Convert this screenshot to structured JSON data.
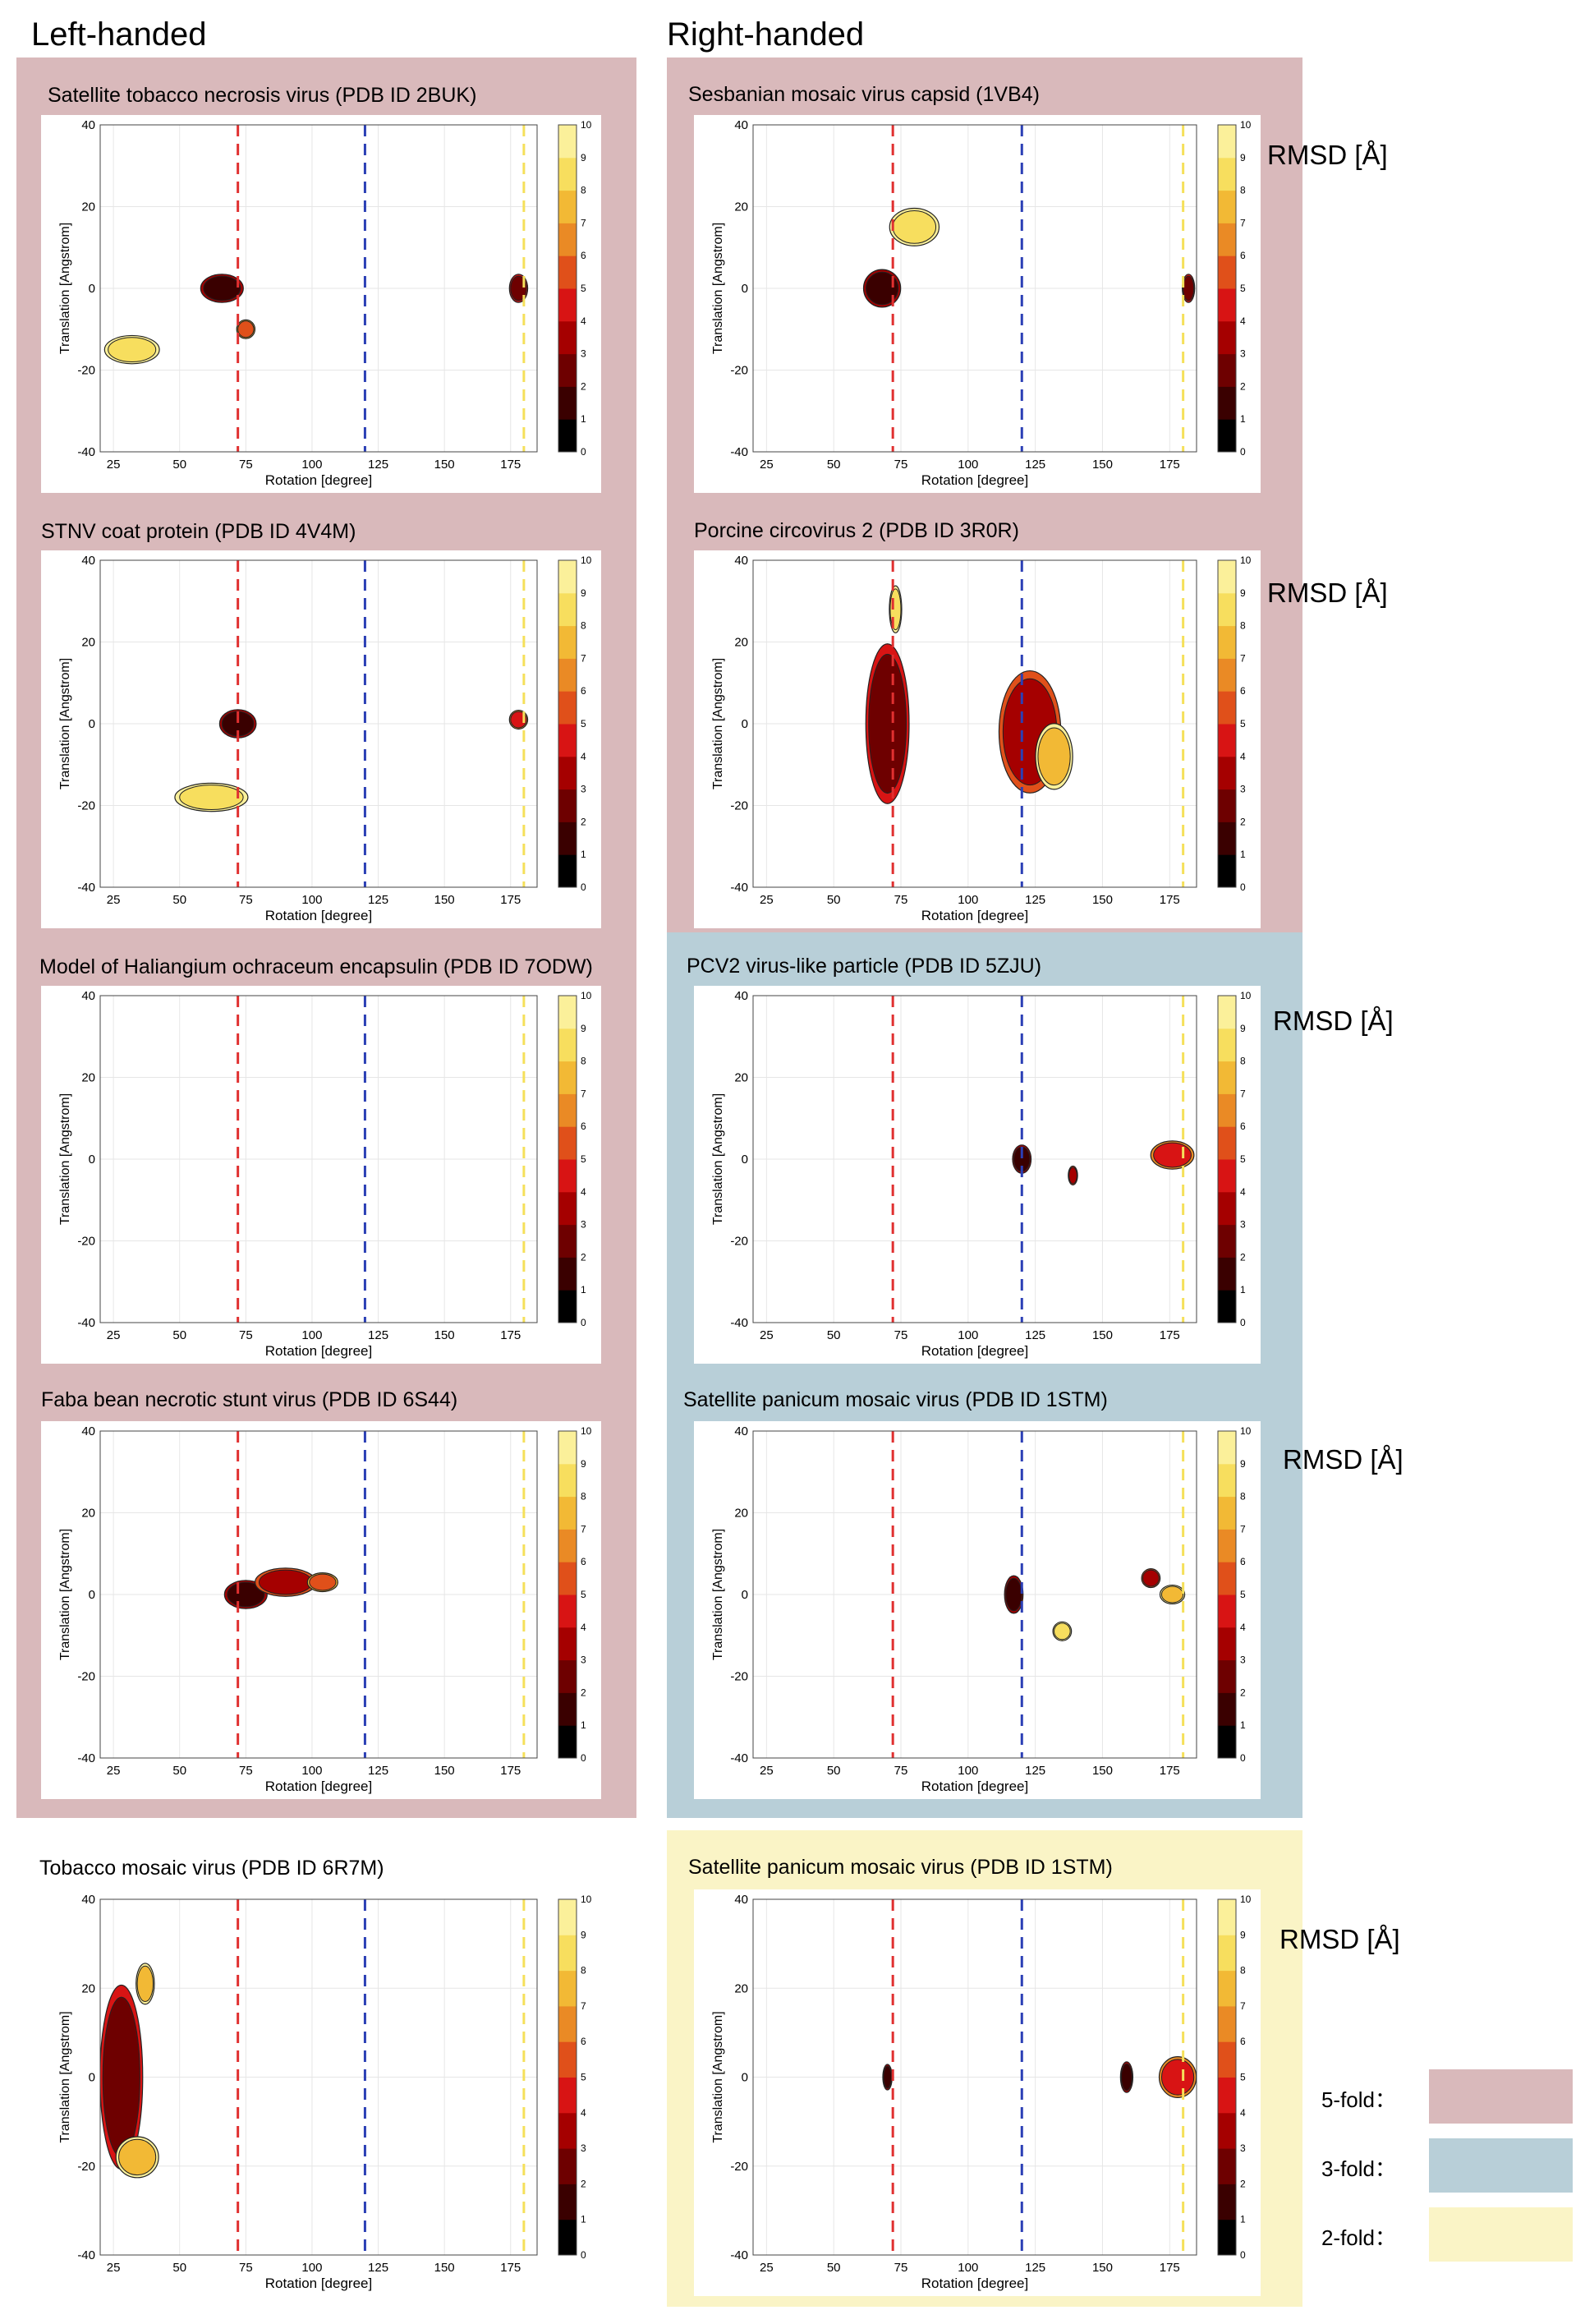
{
  "headers": {
    "left": "Left-handed",
    "right": "Right-handed"
  },
  "colors": {
    "five_fold": "#d9b9bb",
    "three_fold": "#b8cfd8",
    "two_fold": "#faf4c6",
    "red_line": "#e03030",
    "blue_line": "#2b3fb5",
    "yellow_line": "#f5e05a"
  },
  "rmsd_label": "RMSD [Å]",
  "legend": [
    {
      "label": "5-fold：",
      "color": "#d9b9bb"
    },
    {
      "label": "3-fold：",
      "color": "#b8cfd8"
    },
    {
      "label": "2-fold：",
      "color": "#faf4c6"
    }
  ],
  "chart_common": {
    "type": "heatmap",
    "xlabel": "Rotation [degree]",
    "ylabel": "Translation [Angstrom]",
    "xlim": [
      20,
      185
    ],
    "ylim": [
      -40,
      40
    ],
    "xticks": [
      25,
      50,
      75,
      100,
      125,
      150,
      175
    ],
    "yticks": [
      -40,
      -20,
      0,
      20,
      40
    ],
    "colorbar_range": [
      0,
      10
    ],
    "colorbar_ticks": [
      0,
      1,
      2,
      3,
      4,
      5,
      6,
      7,
      8,
      9,
      10
    ],
    "reference_lines": [
      {
        "x": 72,
        "color": "red"
      },
      {
        "x": 120,
        "color": "blue"
      },
      {
        "x": 180,
        "color": "yellow"
      }
    ]
  },
  "chart_data": [
    {
      "type": "heatmap",
      "title": "Satellite tobacco necrosis virus (PDB ID 2BUK)",
      "hand": "left",
      "symmetry": "5-fold",
      "blobs": [
        {
          "x": 32,
          "y": -15,
          "rx": 9,
          "ry": 3,
          "rmsd": 8.5
        },
        {
          "x": 66,
          "y": 0,
          "rx": 7,
          "ry": 3,
          "rmsd": 1
        },
        {
          "x": 75,
          "y": -10,
          "rx": 3,
          "ry": 2,
          "rmsd": 5
        },
        {
          "x": 178,
          "y": 0,
          "rx": 3,
          "ry": 3,
          "rmsd": 2
        }
      ]
    },
    {
      "type": "heatmap",
      "title": "Sesbanian mosaic virus capsid (1VB4)",
      "hand": "right",
      "symmetry": "5-fold",
      "blobs": [
        {
          "x": 80,
          "y": 15,
          "rx": 8,
          "ry": 4,
          "rmsd": 8.5
        },
        {
          "x": 68,
          "y": 0,
          "rx": 6,
          "ry": 4,
          "rmsd": 1
        },
        {
          "x": 182,
          "y": 0,
          "rx": 2,
          "ry": 3,
          "rmsd": 2
        }
      ]
    },
    {
      "type": "heatmap",
      "title": "STNV coat protein (PDB ID 4V4M)",
      "hand": "left",
      "symmetry": "5-fold",
      "blobs": [
        {
          "x": 62,
          "y": -18,
          "rx": 12,
          "ry": 3,
          "rmsd": 8.5
        },
        {
          "x": 72,
          "y": 0,
          "rx": 6,
          "ry": 3,
          "rmsd": 1
        },
        {
          "x": 178,
          "y": 1,
          "rx": 3,
          "ry": 2,
          "rmsd": 4
        }
      ]
    },
    {
      "type": "heatmap",
      "title": "Porcine circovirus 2 (PDB ID 3R0R)",
      "hand": "right",
      "symmetry": "5-fold",
      "blobs": [
        {
          "x": 70,
          "y": 0,
          "rx": 7,
          "ry": 17,
          "rmsd": 2.5
        },
        {
          "x": 123,
          "y": -2,
          "rx": 10,
          "ry": 13,
          "rmsd": 3.5
        },
        {
          "x": 132,
          "y": -8,
          "rx": 6,
          "ry": 7,
          "rmsd": 7
        },
        {
          "x": 73,
          "y": 28,
          "rx": 2,
          "ry": 5,
          "rmsd": 8
        }
      ]
    },
    {
      "type": "heatmap",
      "title": "Model of Haliangium ochraceum encapsulin (PDB ID 7ODW)",
      "hand": "left",
      "symmetry": "5-fold",
      "blobs": []
    },
    {
      "type": "heatmap",
      "title": "PCV2 virus-like particle (PDB ID 5ZJU)",
      "hand": "right",
      "symmetry": "3-fold",
      "blobs": [
        {
          "x": 120,
          "y": 0,
          "rx": 3,
          "ry": 3,
          "rmsd": 1
        },
        {
          "x": 139,
          "y": -4,
          "rx": 1.5,
          "ry": 2,
          "rmsd": 3
        },
        {
          "x": 176,
          "y": 1,
          "rx": 7,
          "ry": 3,
          "rmsd": 4
        }
      ]
    },
    {
      "type": "heatmap",
      "title": "Faba bean necrotic stunt virus (PDB ID 6S44)",
      "hand": "left",
      "symmetry": "5-fold",
      "blobs": [
        {
          "x": 75,
          "y": 0,
          "rx": 7,
          "ry": 3,
          "rmsd": 1
        },
        {
          "x": 90,
          "y": 3,
          "rx": 10,
          "ry": 3,
          "rmsd": 3
        },
        {
          "x": 104,
          "y": 3,
          "rx": 5,
          "ry": 2,
          "rmsd": 5
        }
      ]
    },
    {
      "type": "heatmap",
      "title": "Satellite panicum mosaic virus (PDB ID 1STM)",
      "hand": "right",
      "symmetry": "3-fold",
      "blobs": [
        {
          "x": 117,
          "y": 0,
          "rx": 3,
          "ry": 4,
          "rmsd": 1
        },
        {
          "x": 168,
          "y": 4,
          "rx": 3,
          "ry": 2,
          "rmsd": 3
        },
        {
          "x": 176,
          "y": 0,
          "rx": 4,
          "ry": 2,
          "rmsd": 7
        },
        {
          "x": 135,
          "y": -9,
          "rx": 3,
          "ry": 2,
          "rmsd": 8.5
        }
      ]
    },
    {
      "type": "heatmap",
      "title": "Tobacco mosaic virus (PDB ID 6R7M)",
      "hand": "left",
      "symmetry": "none",
      "blobs": [
        {
          "x": 28,
          "y": 0,
          "rx": 7,
          "ry": 18,
          "rmsd": 2
        },
        {
          "x": 34,
          "y": -18,
          "rx": 7,
          "ry": 4,
          "rmsd": 7
        },
        {
          "x": 37,
          "y": 21,
          "rx": 3,
          "ry": 4,
          "rmsd": 7
        }
      ]
    },
    {
      "type": "heatmap",
      "title": "Satellite panicum mosaic virus (PDB ID 1STM)",
      "hand": "right",
      "symmetry": "2-fold",
      "blobs": [
        {
          "x": 70,
          "y": 0,
          "rx": 1.5,
          "ry": 2.5,
          "rmsd": 1
        },
        {
          "x": 159,
          "y": 0,
          "rx": 2,
          "ry": 3,
          "rmsd": 1
        },
        {
          "x": 178,
          "y": 0,
          "rx": 6,
          "ry": 4,
          "rmsd": 4
        }
      ]
    }
  ]
}
